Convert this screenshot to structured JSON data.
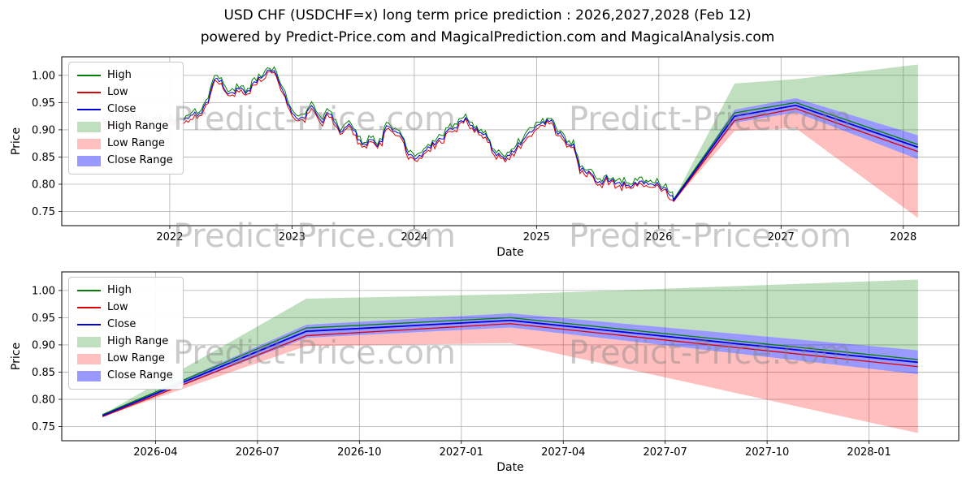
{
  "page": {
    "title": "USD CHF (USDCHF=x) long term price prediction : 2026,2027,2028 (Feb 12)",
    "subtitle": "powered by Predict-Price.com and MagicalPrediction.com and MagicalAnalysis.com",
    "watermark_text": "Predict-Price.com"
  },
  "colors": {
    "high_line": "#008000",
    "low_line": "#dd0000",
    "close_line": "#0000dd",
    "high_range_fill": "rgba(0,128,0,0.25)",
    "low_range_fill": "rgba(255,0,0,0.25)",
    "close_range_fill": "rgba(0,0,255,0.4)",
    "grid": "#b0b0b0",
    "axis": "#000000",
    "text": "#000000"
  },
  "legend": {
    "items": [
      {
        "label": "High",
        "type": "line",
        "color": "#008000"
      },
      {
        "label": "Low",
        "type": "line",
        "color": "#dd0000"
      },
      {
        "label": "Close",
        "type": "line",
        "color": "#0000dd"
      },
      {
        "label": "High Range",
        "type": "patch",
        "color": "rgba(0,128,0,0.25)"
      },
      {
        "label": "Low Range",
        "type": "patch",
        "color": "rgba(255,0,0,0.25)"
      },
      {
        "label": "Close Range",
        "type": "patch",
        "color": "rgba(0,0,255,0.4)"
      }
    ]
  },
  "chart_data": [
    {
      "type": "line",
      "name": "price-history-with-prediction",
      "xlabel": "Date",
      "ylabel": "Price",
      "x_ticks": [
        {
          "v": 2022,
          "label": "2022"
        },
        {
          "v": 2023,
          "label": "2023"
        },
        {
          "v": 2024,
          "label": "2024"
        },
        {
          "v": 2025,
          "label": "2025"
        },
        {
          "v": 2026,
          "label": "2026"
        },
        {
          "v": 2027,
          "label": "2027"
        },
        {
          "v": 2028,
          "label": "2028"
        }
      ],
      "y_ticks": [
        0.75,
        0.8,
        0.85,
        0.9,
        0.95,
        1.0
      ],
      "historical_anchors": {
        "x": [
          2021.45,
          2021.55,
          2021.65,
          2021.75,
          2021.85,
          2021.95,
          2022.05,
          2022.15,
          2022.25,
          2022.32,
          2022.38,
          2022.44,
          2022.5,
          2022.56,
          2022.62,
          2022.7,
          2022.78,
          2022.84,
          2022.9,
          2022.96,
          2023.02,
          2023.1,
          2023.16,
          2023.24,
          2023.3,
          2023.38,
          2023.46,
          2023.52,
          2023.58,
          2023.64,
          2023.72,
          2023.78,
          2023.86,
          2023.92,
          2023.98,
          2024.06,
          2024.14,
          2024.22,
          2024.3,
          2024.38,
          2024.44,
          2024.5,
          2024.58,
          2024.64,
          2024.72,
          2024.8,
          2024.88,
          2024.96,
          2025.04,
          2025.1,
          2025.16,
          2025.24,
          2025.3,
          2025.36,
          2025.44,
          2025.5,
          2025.58,
          2025.66,
          2025.74,
          2025.82,
          2025.9,
          2025.98,
          2026.04,
          2026.08,
          2026.12
        ],
        "close": [
          0.92,
          0.907,
          0.928,
          0.922,
          0.913,
          0.92,
          0.917,
          0.926,
          0.932,
          0.958,
          1.0,
          0.982,
          0.962,
          0.975,
          0.968,
          0.986,
          1.004,
          1.012,
          0.99,
          0.95,
          0.927,
          0.921,
          0.94,
          0.916,
          0.933,
          0.897,
          0.908,
          0.895,
          0.866,
          0.88,
          0.874,
          0.908,
          0.898,
          0.874,
          0.846,
          0.856,
          0.874,
          0.882,
          0.904,
          0.912,
          0.919,
          0.901,
          0.893,
          0.864,
          0.846,
          0.858,
          0.879,
          0.899,
          0.909,
          0.919,
          0.902,
          0.88,
          0.874,
          0.826,
          0.818,
          0.8,
          0.81,
          0.804,
          0.798,
          0.803,
          0.799,
          0.801,
          0.794,
          0.786,
          0.77
        ]
      },
      "prediction": {
        "x": [
          2026.12,
          2026.62,
          2027.12,
          2028.12
        ],
        "x_labels": [
          "2026-02",
          "2026-08",
          "2027-02",
          "2028-02"
        ],
        "high": [
          0.772,
          0.931,
          0.95,
          0.873
        ],
        "low": [
          0.768,
          0.917,
          0.939,
          0.86
        ],
        "close": [
          0.77,
          0.925,
          0.945,
          0.868
        ],
        "close_range_upper": [
          0.771,
          0.937,
          0.958,
          0.89
        ],
        "close_range_lower": [
          0.769,
          0.913,
          0.932,
          0.846
        ],
        "high_range_upper": [
          0.772,
          0.985,
          0.993,
          1.02
        ],
        "low_range_lower": [
          0.768,
          0.898,
          0.903,
          0.738
        ]
      }
    },
    {
      "type": "line",
      "name": "prediction-zoom",
      "xlabel": "Date",
      "ylabel": "Price",
      "x_ticks": [
        {
          "v": 2026.25,
          "label": "2026-04"
        },
        {
          "v": 2026.5,
          "label": "2026-07"
        },
        {
          "v": 2026.75,
          "label": "2026-10"
        },
        {
          "v": 2027.0,
          "label": "2027-01"
        },
        {
          "v": 2027.25,
          "label": "2027-04"
        },
        {
          "v": 2027.5,
          "label": "2027-07"
        },
        {
          "v": 2027.75,
          "label": "2027-10"
        },
        {
          "v": 2028.0,
          "label": "2028-01"
        }
      ],
      "y_ticks": [
        0.75,
        0.8,
        0.85,
        0.9,
        0.95,
        1.0
      ],
      "uses_prediction_from": 0
    }
  ]
}
